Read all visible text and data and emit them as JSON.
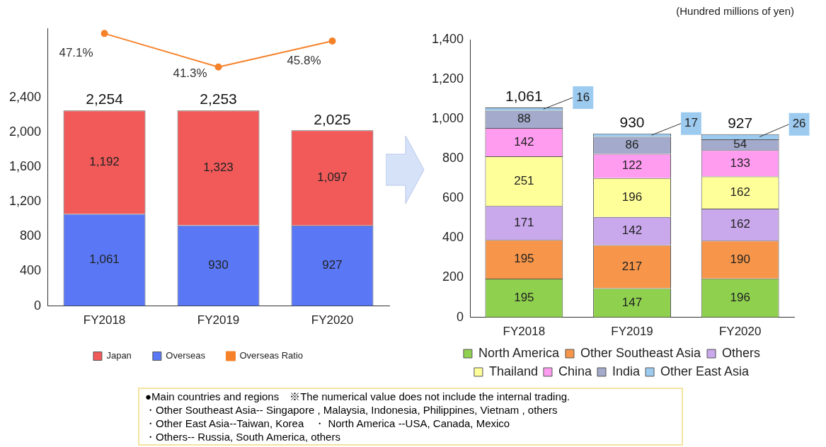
{
  "chart_data": [
    {
      "type": "bar",
      "stacked": true,
      "categories": [
        "FY2018",
        "FY2019",
        "FY2020"
      ],
      "ylim": [
        0,
        3200
      ],
      "yticks": [
        0,
        400,
        800,
        {
          "value": 1200,
          "label": "1,200"
        },
        {
          "value": 1600,
          "label": "1,600"
        },
        {
          "value": 2000,
          "label": "2,000"
        },
        {
          "value": 2400,
          "label": "2,400"
        }
      ],
      "y2lim": [
        0,
        48
      ],
      "legend": "bottom",
      "marker": "circle",
      "totals": [
        "2,254",
        "2,253",
        "2,025"
      ],
      "series": [
        {
          "name": "Overseas",
          "color": "#5a78f5",
          "values": [
            1061,
            930,
            927
          ],
          "value_labels": [
            "1,061",
            "930",
            "927"
          ]
        },
        {
          "name": "Japan",
          "color": "#f25a5a",
          "values": [
            1192,
            1323,
            1097
          ],
          "value_labels": [
            "1,192",
            "1,323",
            "1,097"
          ]
        },
        {
          "name": "Overseas Ratio",
          "type": "line",
          "axis": "y2",
          "color": "#f5822a",
          "values": [
            47.1,
            41.3,
            45.8
          ],
          "value_labels": [
            "47.1%",
            "41.3%",
            "45.8%"
          ]
        }
      ]
    },
    {
      "type": "bar",
      "stacked": true,
      "subtitle": "(Hundred millions of yen)",
      "categories": [
        "FY2018",
        "FY2019",
        "FY2020"
      ],
      "ylim": [
        0,
        1400
      ],
      "yticks": [
        0,
        200,
        400,
        600,
        800,
        {
          "value": 1000,
          "label": "1,000"
        },
        {
          "value": 1200,
          "label": "1,200"
        },
        {
          "value": 1400,
          "label": "1,400"
        }
      ],
      "legend": "bottom",
      "data_labels": true,
      "totals": [
        "1,061",
        "930",
        "927"
      ],
      "series": [
        {
          "name": "North America",
          "color": "#8fd14f",
          "values": [
            195,
            147,
            196
          ]
        },
        {
          "name": "Other Southeast Asia",
          "color": "#f7964a",
          "values": [
            195,
            217,
            190
          ]
        },
        {
          "name": "Others",
          "color": "#c9a8ec",
          "values": [
            171,
            142,
            162
          ]
        },
        {
          "name": "Thailand",
          "color": "#ffff99",
          "values": [
            251,
            196,
            162
          ]
        },
        {
          "name": "China",
          "color": "#ff9cf0",
          "values": [
            142,
            122,
            133
          ]
        },
        {
          "name": "India",
          "color": "#a3aacb",
          "values": [
            88,
            86,
            54
          ]
        },
        {
          "name": "Other East Asia",
          "color": "#9dcbf0",
          "values": [
            16,
            17,
            26
          ]
        }
      ],
      "annotations": [
        "●Main countries and regions　※The numerical value does not include the internal trading.",
        "・Other Southeast Asia-- Singapore , Malaysia, Indonesia, Philippines, Vietnam , others",
        "・Other East Asia--Taiwan, Korea　・ North America --USA, Canada, Mexico",
        "・Others-- Russia, South America, others"
      ]
    }
  ]
}
